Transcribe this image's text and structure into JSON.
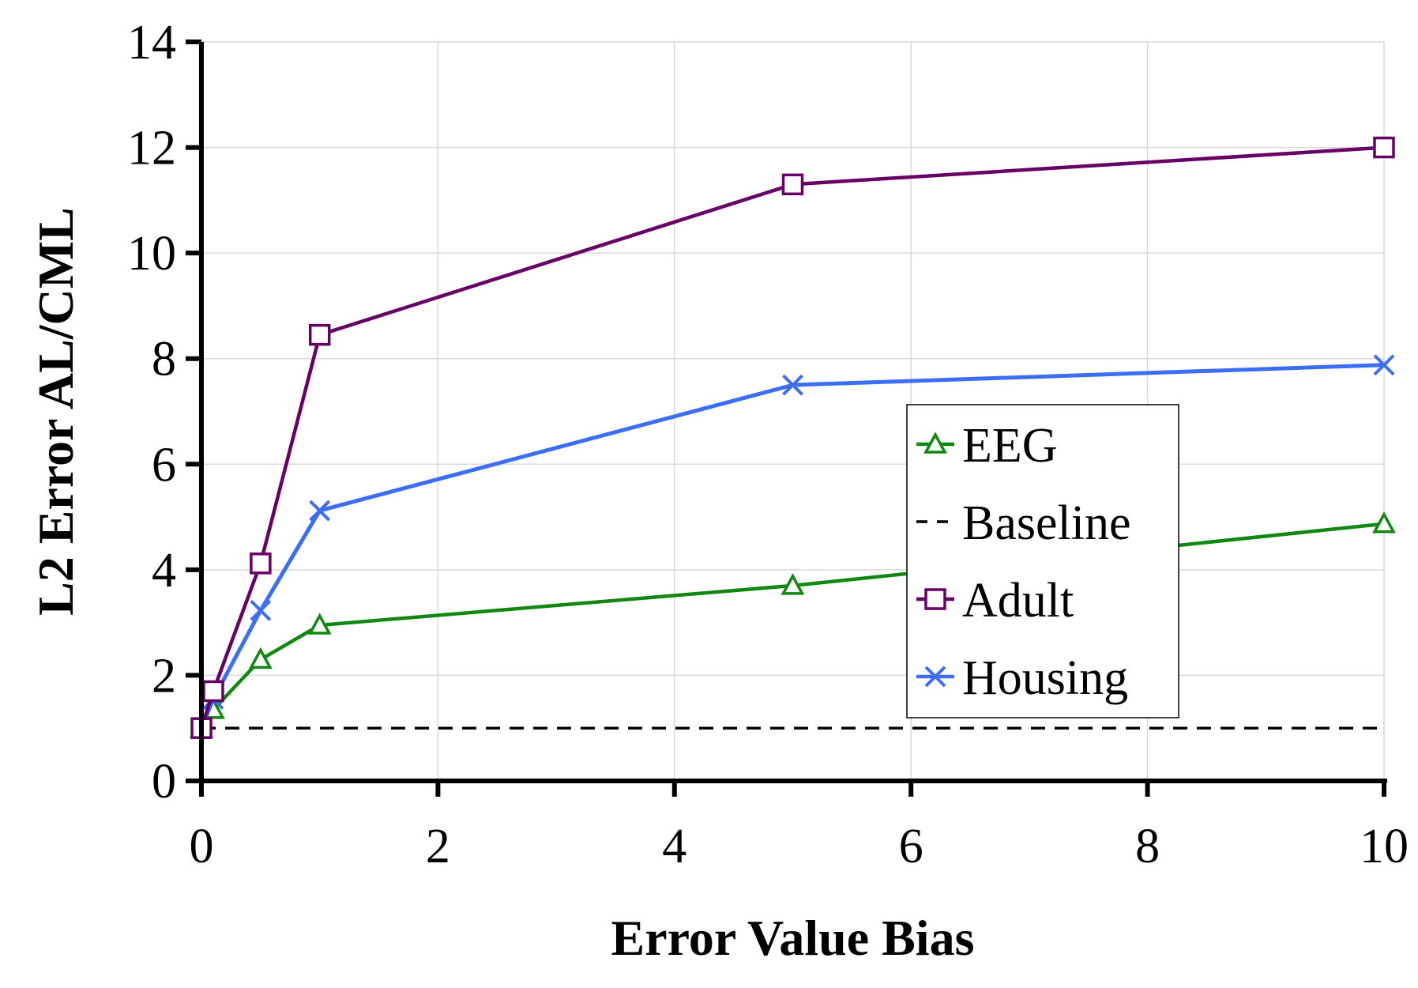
{
  "chart_data": {
    "type": "line",
    "title": "",
    "xlabel": "Error Value Bias",
    "ylabel": "L2 Error AL/CML",
    "xlim": [
      0,
      10
    ],
    "ylim": [
      0,
      14
    ],
    "x_ticks": [
      0,
      2,
      4,
      6,
      8,
      10
    ],
    "y_ticks": [
      0,
      2,
      4,
      6,
      8,
      10,
      12,
      14
    ],
    "x_tick_labels": [
      "0",
      "2",
      "4",
      "6",
      "8",
      "10"
    ],
    "y_tick_labels": [
      "0",
      "2",
      "4",
      "6",
      "8",
      "10",
      "12",
      "14"
    ],
    "grid": true,
    "legend_position": "center-right",
    "series": [
      {
        "name": "EEG",
        "color": "#118811",
        "marker": "triangle",
        "line": "solid",
        "points": [
          [
            0,
            1.0
          ],
          [
            0.1,
            1.35
          ],
          [
            0.5,
            2.3
          ],
          [
            1,
            2.95
          ],
          [
            5,
            3.7
          ],
          [
            10,
            4.87
          ]
        ]
      },
      {
        "name": "Baseline",
        "color": "#000000",
        "marker": "none",
        "line": "dashed",
        "points": [
          [
            0,
            1.0
          ],
          [
            10,
            1.0
          ]
        ]
      },
      {
        "name": "Adult",
        "color": "#660066",
        "marker": "square",
        "line": "solid",
        "points": [
          [
            0,
            1.0
          ],
          [
            0.1,
            1.7
          ],
          [
            0.5,
            4.12
          ],
          [
            1,
            8.45
          ],
          [
            5,
            11.3
          ],
          [
            10,
            12.0
          ]
        ]
      },
      {
        "name": "Housing",
        "color": "#3b6ef5",
        "marker": "x",
        "line": "solid",
        "points": [
          [
            0,
            1.0
          ],
          [
            0.1,
            1.55
          ],
          [
            0.5,
            3.23
          ],
          [
            1,
            5.12
          ],
          [
            5,
            7.5
          ],
          [
            10,
            7.88
          ]
        ]
      }
    ]
  }
}
